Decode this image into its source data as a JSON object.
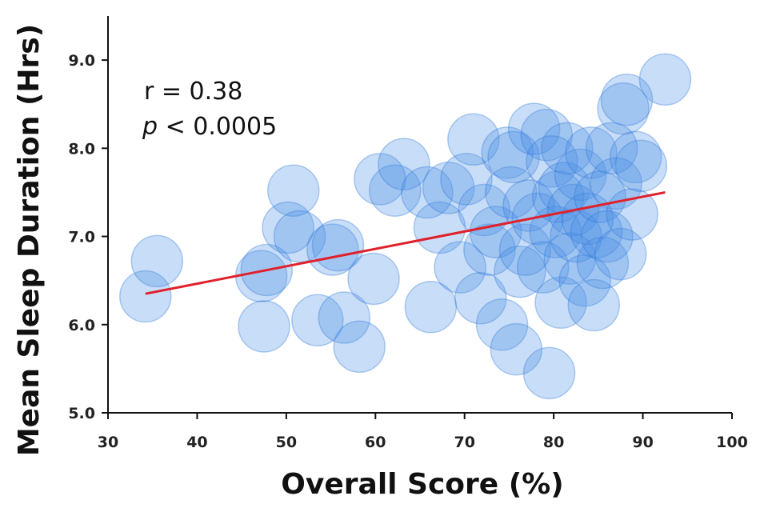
{
  "chart_data": {
    "type": "scatter",
    "xlabel": "Overall Score (%)",
    "ylabel": "Mean Sleep Duration (Hrs)",
    "xlim": [
      30,
      100
    ],
    "ylim": [
      5.0,
      9.5
    ],
    "xticks": [
      30,
      40,
      50,
      60,
      70,
      80,
      90,
      100
    ],
    "xtick_labels": [
      "30",
      "40",
      "50",
      "60",
      "70",
      "80",
      "90",
      "100"
    ],
    "yticks": [
      5.0,
      6.0,
      7.0,
      8.0,
      9.0
    ],
    "ytick_labels": [
      "5.0",
      "6.0",
      "7.0",
      "8.0",
      "9.0"
    ],
    "grid": false,
    "annotation": {
      "r_text": "r = 0.38",
      "p_symbol": "p",
      "p_rest": " < 0.0005"
    },
    "colors": {
      "point_fill": "#4a8ee6",
      "point_stroke": "#2f75d6",
      "trend_line": "#e0202a",
      "axis": "#111111"
    },
    "trend_line": {
      "x": [
        34.2,
        92.5
      ],
      "y": [
        6.35,
        7.5
      ]
    },
    "points": [
      {
        "x": 34.2,
        "y": 6.32
      },
      {
        "x": 35.5,
        "y": 6.72
      },
      {
        "x": 47.2,
        "y": 6.55
      },
      {
        "x": 47.8,
        "y": 6.62
      },
      {
        "x": 47.5,
        "y": 5.98
      },
      {
        "x": 50.2,
        "y": 7.1
      },
      {
        "x": 50.8,
        "y": 7.52
      },
      {
        "x": 51.5,
        "y": 7.0
      },
      {
        "x": 53.5,
        "y": 6.05
      },
      {
        "x": 55.2,
        "y": 6.85
      },
      {
        "x": 55.8,
        "y": 6.9
      },
      {
        "x": 56.5,
        "y": 6.08
      },
      {
        "x": 58.2,
        "y": 5.75
      },
      {
        "x": 59.8,
        "y": 6.52
      },
      {
        "x": 60.5,
        "y": 7.65
      },
      {
        "x": 62.2,
        "y": 7.52
      },
      {
        "x": 63.2,
        "y": 7.82
      },
      {
        "x": 65.8,
        "y": 7.5
      },
      {
        "x": 66.2,
        "y": 6.2
      },
      {
        "x": 67.2,
        "y": 7.1
      },
      {
        "x": 68.2,
        "y": 7.55
      },
      {
        "x": 69.5,
        "y": 6.65
      },
      {
        "x": 70.2,
        "y": 7.65
      },
      {
        "x": 71.0,
        "y": 8.1
      },
      {
        "x": 71.8,
        "y": 6.3
      },
      {
        "x": 72.2,
        "y": 7.3
      },
      {
        "x": 72.8,
        "y": 6.85
      },
      {
        "x": 73.5,
        "y": 7.05
      },
      {
        "x": 74.2,
        "y": 6.0
      },
      {
        "x": 74.8,
        "y": 7.95
      },
      {
        "x": 75.2,
        "y": 7.5
      },
      {
        "x": 75.5,
        "y": 7.9
      },
      {
        "x": 75.8,
        "y": 5.72
      },
      {
        "x": 76.2,
        "y": 6.6
      },
      {
        "x": 76.8,
        "y": 6.85
      },
      {
        "x": 77.2,
        "y": 7.35
      },
      {
        "x": 77.8,
        "y": 8.22
      },
      {
        "x": 78.2,
        "y": 7.2
      },
      {
        "x": 78.8,
        "y": 6.65
      },
      {
        "x": 79.2,
        "y": 8.15
      },
      {
        "x": 79.5,
        "y": 5.45
      },
      {
        "x": 79.8,
        "y": 7.85
      },
      {
        "x": 80.2,
        "y": 7.05
      },
      {
        "x": 80.5,
        "y": 7.45
      },
      {
        "x": 80.8,
        "y": 6.25
      },
      {
        "x": 81.2,
        "y": 7.55
      },
      {
        "x": 81.5,
        "y": 8.0
      },
      {
        "x": 81.8,
        "y": 6.75
      },
      {
        "x": 82.2,
        "y": 7.3
      },
      {
        "x": 82.5,
        "y": 7.0
      },
      {
        "x": 83.0,
        "y": 7.7
      },
      {
        "x": 83.5,
        "y": 6.5
      },
      {
        "x": 83.8,
        "y": 7.2
      },
      {
        "x": 84.2,
        "y": 7.95
      },
      {
        "x": 84.5,
        "y": 6.22
      },
      {
        "x": 84.8,
        "y": 7.05
      },
      {
        "x": 85.2,
        "y": 7.45
      },
      {
        "x": 85.5,
        "y": 6.7
      },
      {
        "x": 86.0,
        "y": 7.0
      },
      {
        "x": 86.5,
        "y": 8.0
      },
      {
        "x": 87.0,
        "y": 7.6
      },
      {
        "x": 87.5,
        "y": 6.8
      },
      {
        "x": 87.8,
        "y": 8.45
      },
      {
        "x": 88.2,
        "y": 8.55
      },
      {
        "x": 88.8,
        "y": 7.25
      },
      {
        "x": 89.2,
        "y": 7.9
      },
      {
        "x": 89.8,
        "y": 7.8
      },
      {
        "x": 92.5,
        "y": 8.78
      }
    ]
  }
}
